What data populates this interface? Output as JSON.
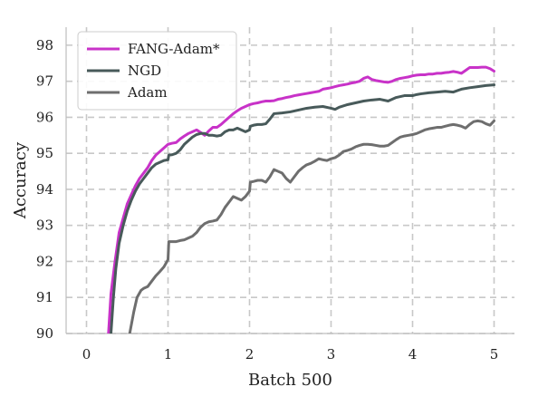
{
  "chart_data": {
    "type": "line",
    "title": "",
    "xlabel": "Batch 500",
    "ylabel": "Accuracy",
    "xlim": [
      -0.25,
      5.25
    ],
    "ylim": [
      90,
      98.5
    ],
    "xticks": [
      0,
      1,
      2,
      3,
      4,
      5
    ],
    "yticks": [
      90,
      91,
      92,
      93,
      94,
      95,
      96,
      97,
      98
    ],
    "grid": true,
    "grid_style": "dashed",
    "legend": {
      "placement": "top-left"
    },
    "series": [
      {
        "name": "FANG-Adam*",
        "color": "#c832c8",
        "x": [
          0.27,
          0.3,
          0.35,
          0.4,
          0.45,
          0.5,
          0.55,
          0.6,
          0.65,
          0.7,
          0.75,
          0.8,
          0.85,
          0.9,
          0.95,
          1.0,
          1.05,
          1.1,
          1.15,
          1.2,
          1.25,
          1.3,
          1.35,
          1.4,
          1.45,
          1.5,
          1.55,
          1.6,
          1.65,
          1.7,
          1.75,
          1.8,
          1.85,
          1.9,
          1.95,
          2.0,
          2.05,
          2.1,
          2.15,
          2.2,
          2.25,
          2.3,
          2.35,
          2.4,
          2.45,
          2.5,
          2.55,
          2.6,
          2.65,
          2.7,
          2.75,
          2.8,
          2.85,
          2.9,
          2.95,
          3.0,
          3.05,
          3.1,
          3.15,
          3.2,
          3.25,
          3.3,
          3.35,
          3.4,
          3.45,
          3.5,
          3.55,
          3.6,
          3.65,
          3.7,
          3.75,
          3.8,
          3.85,
          3.9,
          3.95,
          4.0,
          4.05,
          4.1,
          4.15,
          4.2,
          4.25,
          4.3,
          4.35,
          4.4,
          4.45,
          4.5,
          4.55,
          4.6,
          4.65,
          4.7,
          4.75,
          4.8,
          4.85,
          4.9,
          4.95,
          5.0
        ],
        "y": [
          90.0,
          91.1,
          92.0,
          92.8,
          93.2,
          93.6,
          93.85,
          94.1,
          94.3,
          94.45,
          94.6,
          94.8,
          94.95,
          95.05,
          95.15,
          95.25,
          95.28,
          95.3,
          95.4,
          95.48,
          95.55,
          95.6,
          95.65,
          95.58,
          95.5,
          95.62,
          95.72,
          95.72,
          95.8,
          95.9,
          96.0,
          96.1,
          96.18,
          96.25,
          96.3,
          96.35,
          96.38,
          96.4,
          96.43,
          96.45,
          96.45,
          96.46,
          96.5,
          96.52,
          96.55,
          96.57,
          96.6,
          96.62,
          96.64,
          96.66,
          96.68,
          96.7,
          96.72,
          96.78,
          96.8,
          96.82,
          96.85,
          96.88,
          96.9,
          96.92,
          96.95,
          96.97,
          97.0,
          97.08,
          97.12,
          97.05,
          97.02,
          97.0,
          96.98,
          96.97,
          97.0,
          97.05,
          97.08,
          97.1,
          97.12,
          97.15,
          97.17,
          97.18,
          97.18,
          97.2,
          97.2,
          97.22,
          97.22,
          97.24,
          97.25,
          97.27,
          97.25,
          97.22,
          97.3,
          97.38,
          97.38,
          97.38,
          97.39,
          97.39,
          97.35,
          97.28
        ]
      },
      {
        "name": "NGD",
        "color": "#485a5a",
        "x": [
          0.3,
          0.33,
          0.36,
          0.4,
          0.45,
          0.5,
          0.55,
          0.6,
          0.65,
          0.7,
          0.75,
          0.8,
          0.85,
          0.9,
          0.95,
          1.0,
          1.01,
          1.05,
          1.1,
          1.15,
          1.2,
          1.25,
          1.3,
          1.35,
          1.4,
          1.45,
          1.5,
          1.55,
          1.6,
          1.65,
          1.7,
          1.75,
          1.8,
          1.85,
          1.9,
          1.95,
          2.0,
          2.01,
          2.05,
          2.1,
          2.15,
          2.2,
          2.25,
          2.3,
          2.4,
          2.5,
          2.6,
          2.7,
          2.8,
          2.9,
          3.0,
          3.05,
          3.1,
          3.2,
          3.3,
          3.4,
          3.5,
          3.6,
          3.7,
          3.8,
          3.9,
          3.95,
          4.0,
          4.05,
          4.1,
          4.2,
          4.3,
          4.4,
          4.5,
          4.6,
          4.7,
          4.8,
          4.9,
          5.0
        ],
        "y": [
          90.0,
          91.0,
          91.8,
          92.5,
          93.0,
          93.4,
          93.7,
          93.95,
          94.15,
          94.3,
          94.45,
          94.6,
          94.7,
          94.75,
          94.8,
          94.82,
          94.95,
          94.96,
          95.0,
          95.1,
          95.25,
          95.35,
          95.45,
          95.52,
          95.55,
          95.55,
          95.5,
          95.5,
          95.48,
          95.5,
          95.6,
          95.65,
          95.65,
          95.7,
          95.65,
          95.6,
          95.65,
          95.75,
          95.78,
          95.8,
          95.8,
          95.82,
          95.95,
          96.1,
          96.12,
          96.15,
          96.2,
          96.25,
          96.28,
          96.3,
          96.25,
          96.22,
          96.28,
          96.35,
          96.4,
          96.45,
          96.48,
          96.5,
          96.45,
          96.55,
          96.6,
          96.6,
          96.6,
          96.63,
          96.65,
          96.68,
          96.7,
          96.72,
          96.7,
          96.78,
          96.82,
          96.85,
          96.88,
          96.9
        ]
      },
      {
        "name": "Adam",
        "color": "#6e6e6e",
        "x": [
          0.53,
          0.58,
          0.62,
          0.67,
          0.7,
          0.75,
          0.8,
          0.85,
          0.9,
          0.95,
          1.0,
          1.01,
          1.05,
          1.1,
          1.15,
          1.2,
          1.25,
          1.3,
          1.35,
          1.4,
          1.45,
          1.5,
          1.55,
          1.6,
          1.65,
          1.7,
          1.75,
          1.8,
          1.85,
          1.9,
          1.95,
          2.0,
          2.01,
          2.05,
          2.1,
          2.15,
          2.2,
          2.25,
          2.3,
          2.35,
          2.4,
          2.45,
          2.5,
          2.55,
          2.6,
          2.65,
          2.7,
          2.75,
          2.8,
          2.85,
          2.9,
          2.95,
          3.0,
          3.05,
          3.1,
          3.15,
          3.2,
          3.25,
          3.3,
          3.35,
          3.4,
          3.45,
          3.5,
          3.55,
          3.6,
          3.65,
          3.7,
          3.75,
          3.8,
          3.85,
          3.9,
          3.95,
          4.0,
          4.05,
          4.1,
          4.15,
          4.2,
          4.25,
          4.3,
          4.35,
          4.4,
          4.45,
          4.5,
          4.55,
          4.6,
          4.65,
          4.7,
          4.75,
          4.8,
          4.85,
          4.9,
          4.95,
          5.0
        ],
        "y": [
          90.0,
          90.6,
          91.0,
          91.2,
          91.25,
          91.3,
          91.45,
          91.6,
          91.72,
          91.85,
          92.05,
          92.55,
          92.55,
          92.55,
          92.58,
          92.6,
          92.65,
          92.7,
          92.8,
          92.95,
          93.05,
          93.1,
          93.12,
          93.15,
          93.3,
          93.5,
          93.65,
          93.8,
          93.75,
          93.7,
          93.8,
          93.95,
          94.2,
          94.22,
          94.25,
          94.25,
          94.2,
          94.35,
          94.55,
          94.5,
          94.45,
          94.3,
          94.2,
          94.35,
          94.5,
          94.6,
          94.68,
          94.72,
          94.78,
          94.85,
          94.82,
          94.8,
          94.85,
          94.88,
          94.95,
          95.05,
          95.08,
          95.12,
          95.18,
          95.22,
          95.25,
          95.25,
          95.24,
          95.22,
          95.2,
          95.2,
          95.22,
          95.3,
          95.38,
          95.45,
          95.48,
          95.5,
          95.52,
          95.55,
          95.6,
          95.65,
          95.68,
          95.7,
          95.72,
          95.72,
          95.75,
          95.78,
          95.8,
          95.78,
          95.75,
          95.7,
          95.8,
          95.88,
          95.9,
          95.88,
          95.82,
          95.78,
          95.9
        ]
      }
    ]
  }
}
